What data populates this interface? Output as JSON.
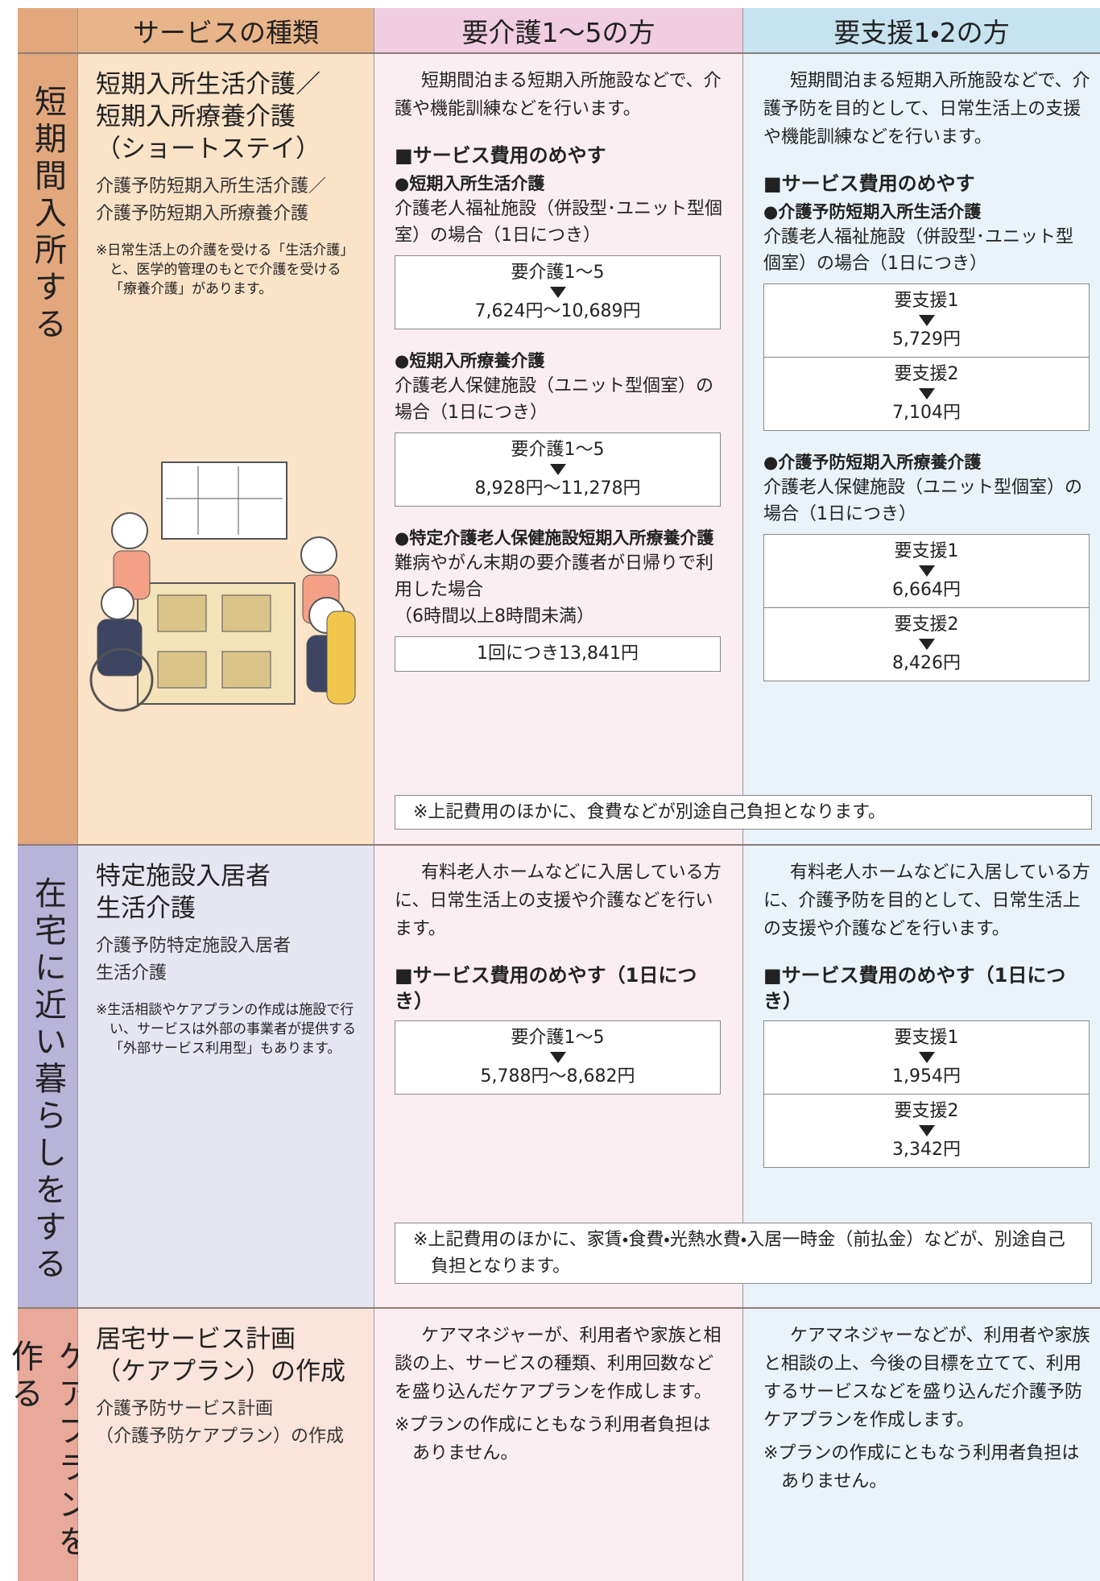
{
  "header": {
    "service_type": "サービスの種類",
    "care": "要介護1〜5の方",
    "support": "要支援1・2の方"
  },
  "sections": [
    {
      "side_label": "短期間入所する",
      "service": {
        "title_lines": [
          "短期入所生活介護／",
          "短期入所療養介護",
          "（ショートステイ）"
        ],
        "subtitle_lines": [
          "介護予防短期入所生活介護／",
          "介護予防短期入所療養介護"
        ],
        "note": "※日常生活上の介護を受ける「生活介護」と、医学的管理のもとで介護を受ける「療養介護」があります。"
      },
      "care": {
        "intro": "短期間泊まる短期入所施設などで、介護や機能訓練などを行います。",
        "fee_heading": "■サービス費用のめやす",
        "items": [
          {
            "name": "●短期入所生活介護",
            "desc": "介護老人福祉施設（併設型･ユニット型個室）の場合（1日につき）",
            "boxes": [
              {
                "level": "要介護1〜5",
                "price": "7,624円〜10,689円"
              }
            ]
          },
          {
            "name": "●短期入所療養介護",
            "desc": "介護老人保健施設（ユニット型個室）の場合（1日につき）",
            "boxes": [
              {
                "level": "要介護1〜5",
                "price": "8,928円〜11,278円"
              }
            ]
          },
          {
            "name": "●特定介護老人保健施設短期入所療養介護",
            "desc": "難病やがん末期の要介護者が日帰りで利用した場合",
            "desc2": "（6時間以上8時間未満）",
            "boxes": [
              {
                "price": "1回につき13,841円"
              }
            ]
          }
        ]
      },
      "support": {
        "intro": "短期間泊まる短期入所施設などで、介護予防を目的として、日常生活上の支援や機能訓練などを行います。",
        "fee_heading": "■サービス費用のめやす",
        "items": [
          {
            "name": "●介護予防短期入所生活介護",
            "desc": "介護老人福祉施設（併設型･ユニット型個室）の場合（1日につき）",
            "boxes": [
              {
                "level": "要支援1",
                "price": "5,729円"
              },
              {
                "level": "要支援2",
                "price": "7,104円"
              }
            ]
          },
          {
            "name": "●介護予防短期入所療養介護",
            "desc": "介護老人保健施設（ユニット型個室）の場合（1日につき）",
            "boxes": [
              {
                "level": "要支援1",
                "price": "6,664円"
              },
              {
                "level": "要支援2",
                "price": "8,426円"
              }
            ]
          }
        ]
      },
      "shared_note": "※上記費用のほかに、食費などが別途自己負担となります。"
    },
    {
      "side_label": "在宅に近い暮らしをする",
      "service": {
        "title_lines": [
          "特定施設入居者",
          "生活介護"
        ],
        "subtitle_lines": [
          "介護予防特定施設入居者",
          "生活介護"
        ],
        "note": "※生活相談やケアプランの作成は施設で行い、サービスは外部の事業者が提供する「外部サービス利用型」もあります。"
      },
      "care": {
        "intro": "有料老人ホームなどに入居している方に、日常生活上の支援や介護などを行います。",
        "fee_heading": "■サービス費用のめやす（1日につき）",
        "items": [
          {
            "boxes": [
              {
                "level": "要介護1〜5",
                "price": "5,788円〜8,682円"
              }
            ]
          }
        ]
      },
      "support": {
        "intro": "有料老人ホームなどに入居している方に、介護予防を目的として、日常生活上の支援や介護などを行います。",
        "fee_heading": "■サービス費用のめやす（1日につき）",
        "items": [
          {
            "boxes": [
              {
                "level": "要支援1",
                "price": "1,954円"
              },
              {
                "level": "要支援2",
                "price": "3,342円"
              }
            ]
          }
        ]
      },
      "shared_note": "※上記費用のほかに、家賃・食費・光熱水費・入居一時金（前払金）などが、別途自己負担となります。"
    },
    {
      "side_label": "ケアプランを作る",
      "service": {
        "title_lines": [
          "居宅サービス計画",
          "（ケアプラン）の作成"
        ],
        "subtitle_lines": [
          "介護予防サービス計画",
          "（介護予防ケアプラン）の作成"
        ]
      },
      "care": {
        "intro": "ケアマネジャーが、利用者や家族と相談の上、サービスの種類、利用回数などを盛り込んだケアプランを作成します。",
        "note": "※プランの作成にともなう利用者負担はありません。"
      },
      "support": {
        "intro": "ケアマネジャーなどが、利用者や家族と相談の上、今後の目標を立てて、利用するサービスなどを盛り込んだ介護予防ケアプランを作成します。",
        "note": "※プランの作成にともなう利用者負担はありません。"
      }
    }
  ]
}
